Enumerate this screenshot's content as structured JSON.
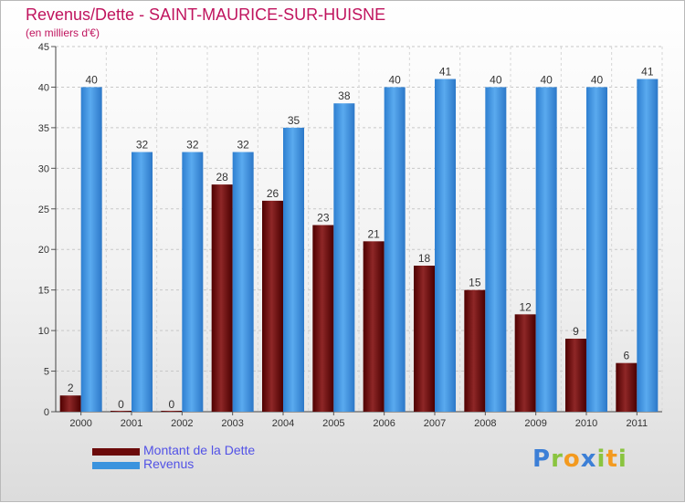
{
  "chart_data": {
    "type": "bar",
    "title": "Revenus/Dette - SAINT-MAURICE-SUR-HUISNE",
    "subtitle": "(en milliers d'€)",
    "categories": [
      "2000",
      "2001",
      "2002",
      "2003",
      "2004",
      "2005",
      "2006",
      "2007",
      "2008",
      "2009",
      "2010",
      "2011"
    ],
    "series": [
      {
        "name": "Montant de la Dette",
        "color": "#6b0a0a",
        "values": [
          2,
          0,
          0,
          28,
          26,
          23,
          21,
          18,
          15,
          12,
          9,
          6
        ]
      },
      {
        "name": "Revenus",
        "color": "#3a93de",
        "values": [
          40,
          32,
          32,
          32,
          35,
          38,
          40,
          41,
          40,
          40,
          40,
          41
        ]
      }
    ],
    "ylim": [
      0,
      45
    ],
    "yticks": [
      "0",
      "5",
      "10",
      "15",
      "20",
      "25",
      "30",
      "35",
      "40",
      "45"
    ],
    "grid": true,
    "legend": "bottom-left"
  },
  "logo": {
    "text": "Proxiti",
    "letters": [
      {
        "ch": "P",
        "color": "#3c7fd6"
      },
      {
        "ch": "r",
        "color": "#8ac43f"
      },
      {
        "ch": "o",
        "color": "#f39a1f"
      },
      {
        "ch": "x",
        "color": "#3c7fd6"
      },
      {
        "ch": "i",
        "color": "#8ac43f"
      },
      {
        "ch": "t",
        "color": "#f39a1f"
      },
      {
        "ch": "i",
        "color": "#8ac43f"
      }
    ]
  }
}
